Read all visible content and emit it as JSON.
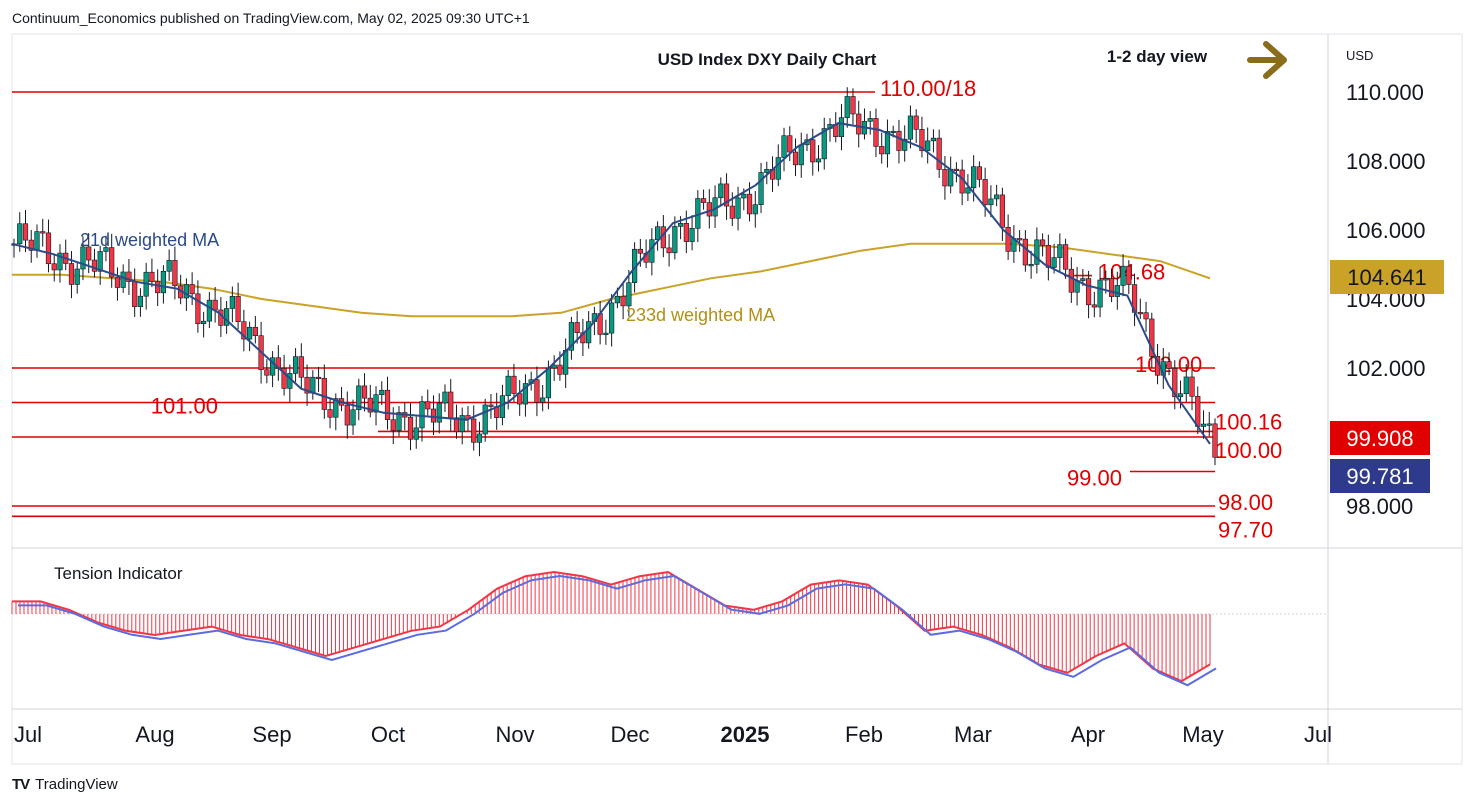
{
  "header": "Continuum_Economics published on TradingView.com, May 02, 2025 09:30 UTC+1",
  "footer": {
    "brand": "TradingView",
    "logo": "tv-logo-icon"
  },
  "currency": "USD",
  "view_label": "1-2 day view",
  "colors": {
    "up": "#089981",
    "down": "#f23645",
    "wma21": "#2a4a8a",
    "wma233": "#c9a227",
    "level": "#e00000",
    "tension_fill": "#f23645",
    "tension_blue": "#5b6be0",
    "arrow": "#8a6d1a"
  },
  "chart_data": [
    {
      "type": "candlestick",
      "title": "USD Index DXY Daily Chart",
      "x_ticks": [
        "Jul",
        "Aug",
        "Sep",
        "Oct",
        "Nov",
        "Dec",
        "2025",
        "Feb",
        "Mar",
        "Apr",
        "May",
        "Jul"
      ],
      "y_ticks": [
        "110.000",
        "108.000",
        "106.000",
        "104.000",
        "102.000",
        "98.000"
      ],
      "ylim": [
        97.3,
        111.4
      ],
      "current_price": "99.908",
      "secondary_price": "99.781",
      "wma233_value": "104.641",
      "levels": [
        {
          "label": "110.00/18",
          "value": 110.0
        },
        {
          "label": "104.68",
          "value": 104.68
        },
        {
          "label": "102.00",
          "value": 102.0
        },
        {
          "label": "101.00",
          "value": 101.0
        },
        {
          "label": "100.16",
          "value": 100.16
        },
        {
          "label": "100.00",
          "value": 100.0
        },
        {
          "label": "99.00",
          "value": 99.0
        },
        {
          "label": "98.00",
          "value": 98.0
        },
        {
          "label": "97.70",
          "value": 97.7
        }
      ],
      "series": [
        {
          "name": "21d weighted MA",
          "values": [
            105.6,
            105.3,
            104.9,
            104.5,
            104.3,
            103.6,
            102.5,
            101.4,
            101.0,
            100.7,
            100.6,
            100.5,
            101.0,
            102.0,
            103.2,
            104.8,
            106.2,
            106.6,
            107.3,
            108.4,
            109.1,
            108.9,
            108.4,
            107.5,
            106.0,
            105.0,
            104.4,
            104.1,
            101.5,
            99.8
          ]
        },
        {
          "name": "233d weighted MA",
          "values": [
            104.7,
            104.7,
            104.6,
            104.5,
            104.3,
            104.0,
            103.8,
            103.6,
            103.5,
            103.5,
            103.5,
            103.6,
            104.0,
            104.3,
            104.6,
            104.8,
            105.1,
            105.4,
            105.6,
            105.6,
            105.6,
            105.5,
            105.3,
            105.1,
            104.6
          ]
        }
      ]
    },
    {
      "type": "area",
      "title": "Tension Indicator",
      "values": [
        0.3,
        0.3,
        0.1,
        -0.2,
        -0.4,
        -0.5,
        -0.4,
        -0.3,
        -0.5,
        -0.6,
        -0.8,
        -1.0,
        -0.8,
        -0.6,
        -0.4,
        -0.3,
        0.1,
        0.6,
        0.9,
        1.0,
        0.9,
        0.7,
        0.9,
        1.0,
        0.6,
        0.2,
        0.1,
        0.3,
        0.7,
        0.8,
        0.7,
        0.2,
        -0.4,
        -0.3,
        -0.5,
        -0.8,
        -1.2,
        -1.4,
        -1.0,
        -0.7,
        -1.3,
        -1.6,
        -1.2
      ]
    }
  ]
}
